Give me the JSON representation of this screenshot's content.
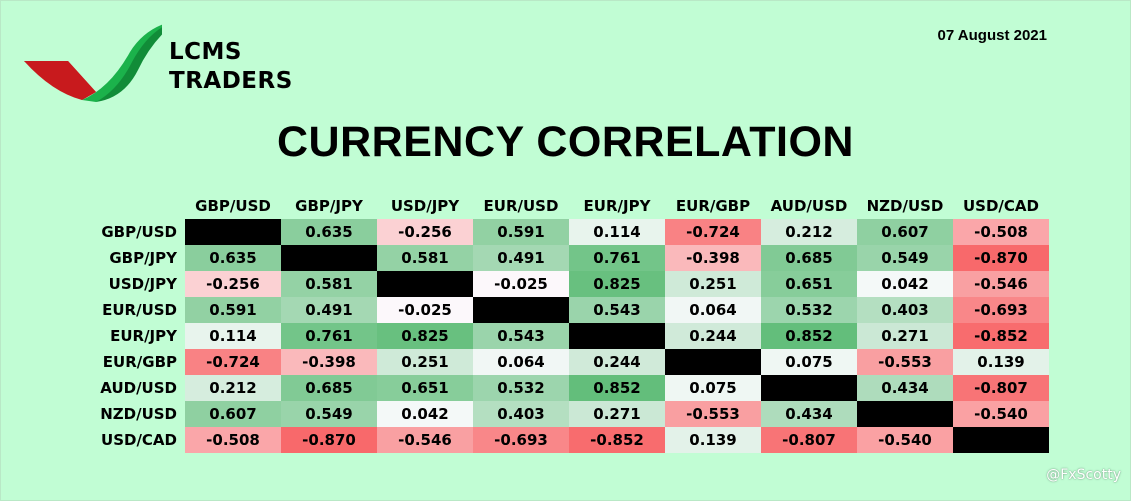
{
  "brand": {
    "line1": "LCMS",
    "line2": "TRADERS"
  },
  "date": "07 August 2021",
  "watermark": "@FxScotty",
  "chart_data": {
    "type": "heatmap",
    "title": "CURRENCY CORRELATION",
    "columns": [
      "GBP/USD",
      "GBP/JPY",
      "USD/JPY",
      "EUR/USD",
      "EUR/JPY",
      "EUR/GBP",
      "AUD/USD",
      "NZD/USD",
      "USD/CAD"
    ],
    "rows": [
      "GBP/USD",
      "GBP/JPY",
      "USD/JPY",
      "EUR/USD",
      "EUR/JPY",
      "EUR/GBP",
      "AUD/USD",
      "NZD/USD",
      "USD/CAD"
    ],
    "values": [
      [
        null,
        "0.635",
        "-0.256",
        "0.591",
        "0.114",
        "-0.724",
        "0.212",
        "0.607",
        "-0.508"
      ],
      [
        "0.635",
        null,
        "0.581",
        "0.491",
        "0.761",
        "-0.398",
        "0.685",
        "0.549",
        "-0.870"
      ],
      [
        "-0.256",
        "0.581",
        null,
        "-0.025",
        "0.825",
        "0.251",
        "0.651",
        "0.042",
        "-0.546"
      ],
      [
        "0.591",
        "0.491",
        "-0.025",
        null,
        "0.543",
        "0.064",
        "0.532",
        "0.403",
        "-0.693"
      ],
      [
        "0.114",
        "0.761",
        "0.825",
        "0.543",
        null,
        "0.244",
        "0.852",
        "0.271",
        "-0.852"
      ],
      [
        "-0.724",
        "-0.398",
        "0.251",
        "0.064",
        "0.244",
        null,
        "0.075",
        "-0.553",
        "0.139"
      ],
      [
        "0.212",
        "0.685",
        "0.651",
        "0.532",
        "0.852",
        "0.075",
        null,
        "0.434",
        "-0.807"
      ],
      [
        "0.607",
        "0.549",
        "0.042",
        "0.403",
        "0.271",
        "-0.553",
        "0.434",
        null,
        "-0.540"
      ],
      [
        "-0.508",
        "-0.870",
        "-0.546",
        "-0.693",
        "-0.852",
        "0.139",
        "-0.807",
        "-0.540",
        null
      ]
    ],
    "colors": {
      "positive": "#63be7b",
      "negative": "#f8696b",
      "neutral": "#fcfcff",
      "diagonal": "#000000"
    }
  }
}
